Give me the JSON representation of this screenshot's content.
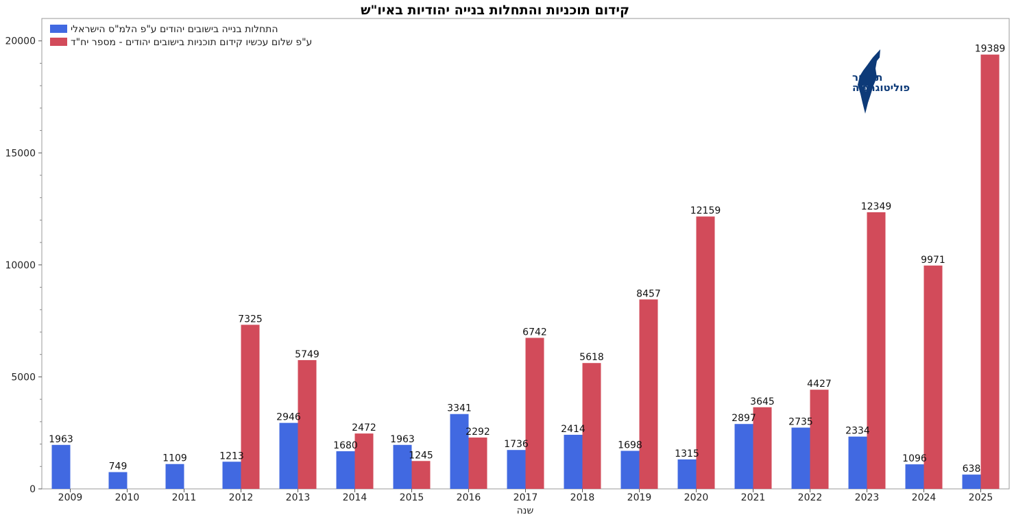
{
  "chart_data": {
    "type": "bar",
    "title": "קידום תוכניות והתחלות בנייה יהודיות באיו\"ש",
    "xlabel": "שנה",
    "ylabel": "",
    "ylim": [
      0,
      21000
    ],
    "yticks": [
      0,
      5000,
      10000,
      15000,
      20000
    ],
    "grid": false,
    "legend_position": "top-left",
    "categories": [
      "2009",
      "2010",
      "2011",
      "2012",
      "2013",
      "2014",
      "2015",
      "2016",
      "2017",
      "2018",
      "2019",
      "2020",
      "2021",
      "2022",
      "2023",
      "2024",
      "2025"
    ],
    "series": [
      {
        "name": "התחלות בנייה בישובים יהודים ע\"פ הלמ\"ס הישראלי",
        "color": "#4169e1",
        "values": [
          1963,
          749,
          1109,
          1213,
          2946,
          1680,
          1963,
          3341,
          1736,
          2414,
          1698,
          1315,
          2897,
          2735,
          2334,
          1096,
          638
        ]
      },
      {
        "name": "ע\"פ שלום עכשיו קידום תוכניות בישובים יהודים - מספר יח\"ד",
        "color": "#d24b5a",
        "values": [
          null,
          null,
          null,
          7325,
          5749,
          2472,
          1245,
          2292,
          6742,
          5618,
          8457,
          12159,
          3645,
          4427,
          12349,
          9971,
          19389
        ]
      }
    ]
  },
  "logo": {
    "line1": "תמרור",
    "line2": "פוליטוגרפיה",
    "color": "#0d3a78",
    "icon": "israel-map-icon"
  }
}
